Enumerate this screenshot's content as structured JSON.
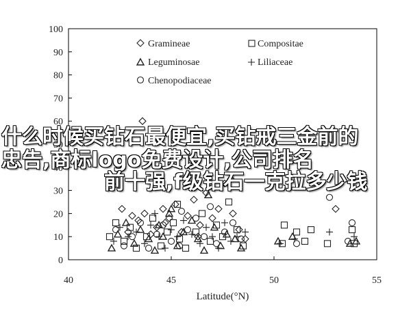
{
  "chart_data": {
    "type": "scatter",
    "title": "",
    "xlabel": "Latitude(°N)",
    "ylabel": "",
    "xlim": [
      40,
      55
    ],
    "ylim": [
      0,
      100
    ],
    "xticks": [
      "40",
      "45",
      "50",
      "55"
    ],
    "yticks": [
      "0",
      "10",
      "20",
      "30",
      "40",
      "50",
      "60",
      "70",
      "80",
      "90",
      "100"
    ],
    "grid": false,
    "legend_position": "top-center",
    "series": [
      {
        "name": "Gramineae",
        "marker": "diamond",
        "points": [
          [
            42.2,
            32
          ],
          [
            42.6,
            22
          ],
          [
            43.1,
            19
          ],
          [
            43.4,
            17
          ],
          [
            43.7,
            20
          ],
          [
            44.0,
            11
          ],
          [
            44.3,
            14
          ],
          [
            44.6,
            22
          ],
          [
            44.9,
            18
          ],
          [
            45.2,
            24
          ],
          [
            45.5,
            12
          ],
          [
            45.8,
            19
          ],
          [
            46.1,
            26
          ],
          [
            46.4,
            15
          ],
          [
            46.7,
            29
          ],
          [
            47.0,
            18
          ],
          [
            47.3,
            22
          ],
          [
            47.6,
            33
          ],
          [
            48.0,
            20
          ],
          [
            48.3,
            13
          ],
          [
            48.6,
            9
          ],
          [
            43.6,
            60
          ],
          [
            47.9,
            35
          ],
          [
            53.0,
            22
          ],
          [
            46.3,
            10
          ],
          [
            44.7,
            16
          ],
          [
            42.9,
            12
          ]
        ]
      },
      {
        "name": "Compositae",
        "marker": "square",
        "points": [
          [
            42.0,
            10
          ],
          [
            42.3,
            16
          ],
          [
            42.7,
            8
          ],
          [
            43.0,
            14
          ],
          [
            43.3,
            5
          ],
          [
            43.8,
            10
          ],
          [
            44.1,
            18
          ],
          [
            44.5,
            6
          ],
          [
            44.8,
            12
          ],
          [
            45.1,
            16
          ],
          [
            45.4,
            9
          ],
          [
            45.7,
            5
          ],
          [
            46.2,
            12
          ],
          [
            46.5,
            20
          ],
          [
            46.9,
            8
          ],
          [
            47.2,
            15
          ],
          [
            47.5,
            10
          ],
          [
            47.8,
            25
          ],
          [
            48.2,
            13
          ],
          [
            48.5,
            6
          ],
          [
            50.5,
            15
          ],
          [
            51.1,
            12
          ],
          [
            51.5,
            8
          ],
          [
            51.8,
            13
          ],
          [
            53.8,
            13
          ],
          [
            53.9,
            7
          ],
          [
            50.4,
            7
          ],
          [
            52.6,
            7
          ],
          [
            45.3,
            24
          ]
        ]
      },
      {
        "name": "Leguminosae",
        "marker": "triangle",
        "points": [
          [
            42.1,
            5
          ],
          [
            42.4,
            11
          ],
          [
            42.8,
            16
          ],
          [
            43.2,
            7
          ],
          [
            43.5,
            13
          ],
          [
            43.9,
            9
          ],
          [
            44.2,
            4
          ],
          [
            44.4,
            15
          ],
          [
            44.9,
            20
          ],
          [
            45.3,
            6
          ],
          [
            45.6,
            12
          ],
          [
            46.0,
            17
          ],
          [
            46.3,
            9
          ],
          [
            46.6,
            4
          ],
          [
            46.8,
            28
          ],
          [
            47.1,
            14
          ],
          [
            47.4,
            6
          ],
          [
            47.7,
            11
          ],
          [
            48.1,
            9
          ],
          [
            48.4,
            5
          ],
          [
            50.2,
            8
          ],
          [
            50.9,
            10
          ],
          [
            53.7,
            7
          ],
          [
            54.0,
            8
          ],
          [
            45.0,
            22
          ],
          [
            44.6,
            10
          ]
        ]
      },
      {
        "name": "Liliaceae",
        "marker": "plus",
        "points": [
          [
            42.2,
            8
          ],
          [
            42.5,
            14
          ],
          [
            42.9,
            10
          ],
          [
            43.3,
            12
          ],
          [
            43.7,
            7
          ],
          [
            44.0,
            15
          ],
          [
            44.4,
            10
          ],
          [
            44.7,
            5
          ],
          [
            45.0,
            13
          ],
          [
            45.3,
            10
          ],
          [
            45.6,
            17
          ],
          [
            46.0,
            11
          ],
          [
            46.4,
            7
          ],
          [
            46.7,
            14
          ],
          [
            47.0,
            10
          ],
          [
            47.3,
            5
          ],
          [
            47.6,
            16
          ],
          [
            47.9,
            8
          ],
          [
            48.2,
            10
          ],
          [
            48.6,
            12
          ],
          [
            50.3,
            7
          ],
          [
            51.0,
            9
          ],
          [
            53.9,
            10
          ],
          [
            52.7,
            12
          ],
          [
            44.2,
            20
          ]
        ]
      },
      {
        "name": "Chenopodiaceae",
        "marker": "circle",
        "points": [
          [
            42.3,
            13
          ],
          [
            42.7,
            6
          ],
          [
            43.1,
            10
          ],
          [
            43.5,
            16
          ],
          [
            43.9,
            5
          ],
          [
            44.3,
            11
          ],
          [
            44.6,
            15
          ],
          [
            45.0,
            8
          ],
          [
            45.4,
            6
          ],
          [
            45.8,
            13
          ],
          [
            46.2,
            18
          ],
          [
            46.6,
            10
          ],
          [
            46.9,
            23
          ],
          [
            47.2,
            7
          ],
          [
            47.6,
            12
          ],
          [
            48.0,
            16
          ],
          [
            48.4,
            9
          ],
          [
            51.1,
            7
          ],
          [
            53.8,
            16
          ],
          [
            53.6,
            8
          ],
          [
            52.7,
            27
          ],
          [
            45.5,
            21
          ]
        ]
      }
    ]
  },
  "overlay": {
    "line1": "什么时候买钻石最便宜,买钻戒三金前的",
    "line2": "忠告,商标logo免费设计,公司排名",
    "line3": "前十强,f级钻石一克拉多少钱"
  }
}
